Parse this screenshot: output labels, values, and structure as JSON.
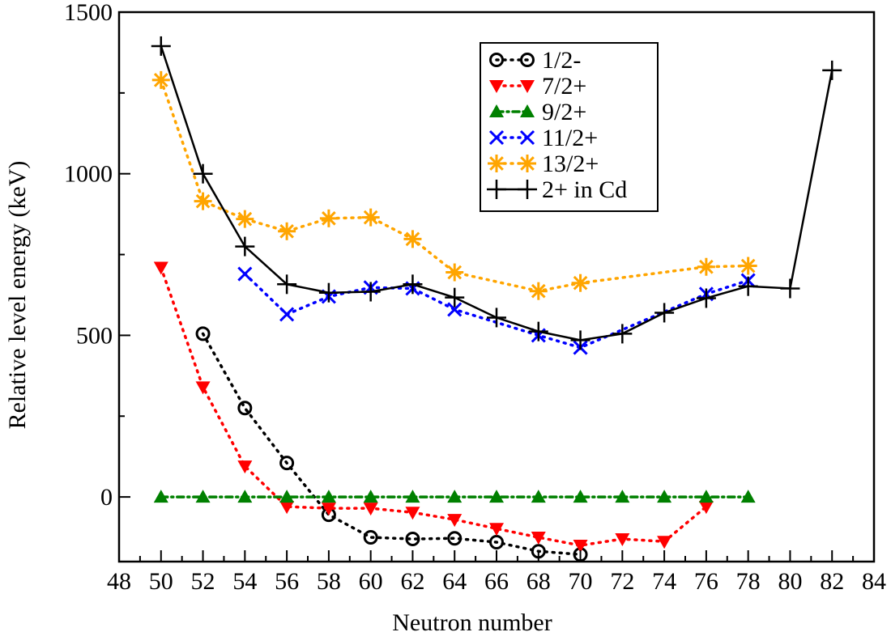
{
  "chart_data": {
    "type": "line",
    "title": "",
    "xlabel": "Neutron number",
    "ylabel": "Relative level energy (keV)",
    "xlim": [
      48,
      84
    ],
    "ylim": [
      -200,
      1500
    ],
    "xticks": [
      48,
      50,
      52,
      54,
      56,
      58,
      60,
      62,
      64,
      66,
      68,
      70,
      72,
      74,
      76,
      78,
      80,
      82,
      84
    ],
    "yticks": [
      0,
      500,
      1000,
      1500
    ],
    "legend_position": "top-right",
    "series": [
      {
        "name": "1/2-",
        "color": "#000000",
        "marker": "circle",
        "line": "dotted",
        "x": [
          52,
          54,
          56,
          58,
          60,
          62,
          64,
          66,
          68,
          70
        ],
        "y": [
          505,
          275,
          105,
          -55,
          -125,
          -130,
          -128,
          -140,
          -168,
          -178
        ]
      },
      {
        "name": "7/2+",
        "color": "#ff0000",
        "marker": "triangle-down",
        "line": "dotted",
        "x": [
          50,
          52,
          54,
          56,
          58,
          60,
          62,
          64,
          66,
          68,
          70,
          72,
          74,
          76
        ],
        "y": [
          710,
          340,
          95,
          -30,
          -35,
          -35,
          -48,
          -70,
          -98,
          -125,
          -150,
          -130,
          -138,
          -30
        ]
      },
      {
        "name": "9/2+",
        "color": "#008000",
        "marker": "triangle-up",
        "line": "dashdot",
        "x": [
          50,
          52,
          54,
          56,
          58,
          60,
          62,
          64,
          66,
          68,
          70,
          72,
          74,
          76,
          78
        ],
        "y": [
          0,
          0,
          0,
          0,
          0,
          0,
          0,
          0,
          0,
          0,
          0,
          0,
          0,
          0,
          0
        ]
      },
      {
        "name": "11/2+",
        "color": "#0000ff",
        "marker": "x",
        "line": "dotted",
        "x": [
          54,
          56,
          58,
          60,
          62,
          64,
          68,
          70,
          76,
          78
        ],
        "y": [
          690,
          565,
          620,
          648,
          645,
          580,
          500,
          462,
          628,
          670
        ]
      },
      {
        "name": "13/2+",
        "color": "#ffa500",
        "marker": "star",
        "line": "dotted",
        "x": [
          50,
          52,
          54,
          56,
          58,
          60,
          62,
          64,
          68,
          70,
          76,
          78
        ],
        "y": [
          1290,
          915,
          860,
          822,
          862,
          865,
          798,
          695,
          637,
          662,
          712,
          715
        ]
      },
      {
        "name": "2+ in Cd",
        "color": "#000000",
        "marker": "plus",
        "line": "solid",
        "x": [
          50,
          52,
          54,
          56,
          58,
          60,
          62,
          64,
          66,
          68,
          70,
          72,
          74,
          76,
          78,
          80,
          82
        ],
        "y": [
          1395,
          1000,
          775,
          658,
          632,
          635,
          658,
          617,
          555,
          512,
          485,
          505,
          570,
          615,
          652,
          645,
          1320
        ]
      }
    ]
  }
}
